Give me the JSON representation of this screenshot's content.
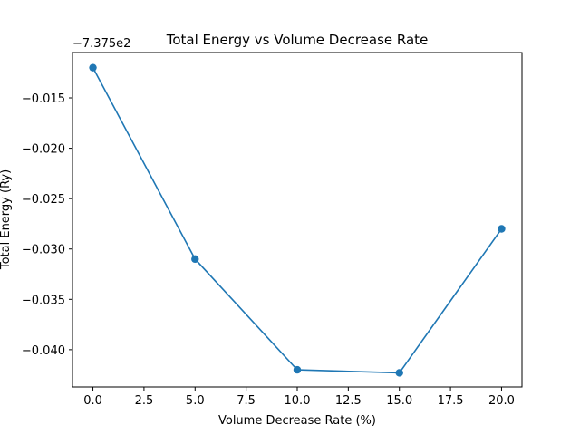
{
  "chart_data": {
    "type": "line",
    "title": "Total Energy vs Volume Decrease Rate",
    "xlabel": "Volume Decrease Rate (%)",
    "ylabel": "Total Energy (Ry)",
    "y_offset_label": "−7.375e2",
    "x": [
      0,
      5,
      10,
      15,
      20
    ],
    "series": [
      {
        "values": [
          -0.012,
          -0.031,
          -0.042,
          -0.0423,
          -0.028
        ]
      }
    ],
    "xlim": [
      -1,
      21
    ],
    "ylim": [
      -0.0437,
      -0.0105
    ],
    "x_ticks": [
      0,
      2.5,
      5,
      7.5,
      10,
      12.5,
      15,
      17.5,
      20
    ],
    "x_tick_labels": [
      "0.0",
      "2.5",
      "5.0",
      "7.5",
      "10.0",
      "12.5",
      "15.0",
      "17.5",
      "20.0"
    ],
    "y_ticks": [
      -0.015,
      -0.02,
      -0.025,
      -0.03,
      -0.035,
      -0.04
    ],
    "y_tick_labels": [
      "−0.015",
      "−0.020",
      "−0.025",
      "−0.030",
      "−0.035",
      "−0.040"
    ],
    "grid": false,
    "marker": "circle",
    "line_color": "#1f77b4"
  }
}
